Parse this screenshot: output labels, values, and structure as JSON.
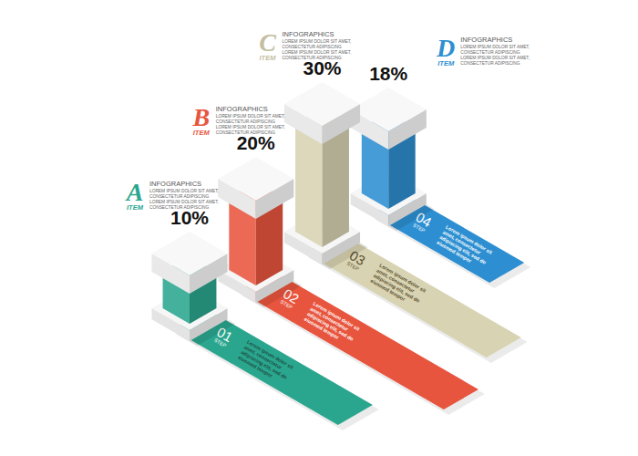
{
  "chart_data": {
    "type": "bar",
    "categories": [
      "A",
      "B",
      "C",
      "D"
    ],
    "values": [
      10,
      20,
      30,
      18
    ],
    "value_labels": [
      "10%",
      "20%",
      "30%",
      "18%"
    ],
    "data_labels": true,
    "tick_labels": false,
    "colors": [
      "#2ba68e",
      "#e8553e",
      "#d8d3b2",
      "#2d8fd1"
    ],
    "annotations": [
      {
        "item": "ITEM",
        "heading": "INFOGRAPHICS",
        "text": [
          "LOREM IPSUM DOLOR SIT AMET,",
          "CONSECTETUR ADIPISCING",
          "LOREM IPSUM DOLOR SIT AMET,",
          "CONSECTETUR ADIPISCING"
        ],
        "step": "STEP",
        "step_number": "01",
        "step_text": [
          "Lorem ipsum dolor sit",
          "amet, consectetur",
          "adipiscing elit, sed do",
          "eiusmod tempor"
        ]
      },
      {
        "item": "ITEM",
        "heading": "INFOGRAPHICS",
        "text": [
          "LOREM IPSUM DOLOR SIT AMET,",
          "CONSECTETUR ADIPISCING",
          "LOREM IPSUM DOLOR SIT AMET,",
          "CONSECTETUR ADIPISCING"
        ],
        "step": "STEP",
        "step_number": "02",
        "step_text": [
          "Lorem ipsum dolor sit",
          "amet, consectetur",
          "adipiscing elit, sed do",
          "eiusmod tempor"
        ]
      },
      {
        "item": "ITEM",
        "heading": "INFOGRAPHICS",
        "text": [
          "LOREM IPSUM DOLOR SIT AMET,",
          "CONSECTETUR ADIPISCING",
          "LOREM IPSUM DOLOR SIT AMET,",
          "CONSECTETUR ADIPISCING"
        ],
        "step": "STEP",
        "step_number": "03",
        "step_text": [
          "Lorem ipsum dolor sit",
          "amet, consectetur",
          "adipiscing elit, sed do",
          "eiusmod tempor"
        ]
      },
      {
        "item": "ITEM",
        "heading": "INFOGRAPHICS",
        "text": [
          "LOREM IPSUM DOLOR SIT AMET,",
          "CONSECTETUR ADIPISCING",
          "LOREM IPSUM DOLOR SIT AMET,",
          "CONSECTETUR ADIPISCING"
        ],
        "step": "STEP",
        "step_number": "04",
        "step_text": [
          "Lorem ipsum dolor sit",
          "amet, consectetur",
          "adipiscing elit, sed do",
          "eiusmod tempor"
        ]
      }
    ]
  }
}
